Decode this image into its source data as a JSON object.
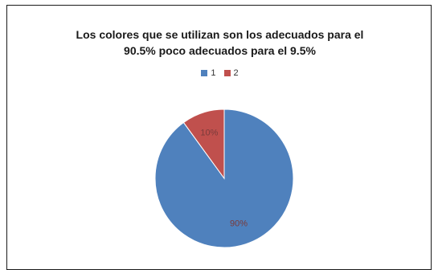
{
  "chart_data": {
    "type": "pie",
    "title": [
      "Los colores que se utilizan son los adecuados para el",
      "90.5% poco adecuados para el 9.5%"
    ],
    "categories": [
      "1",
      "2"
    ],
    "values": [
      90,
      10
    ],
    "data_labels": [
      "90%",
      "10%"
    ],
    "colors": [
      "#4f81bd",
      "#c0504d"
    ],
    "label_color": "#7a3b3b",
    "legend_position": "top"
  }
}
